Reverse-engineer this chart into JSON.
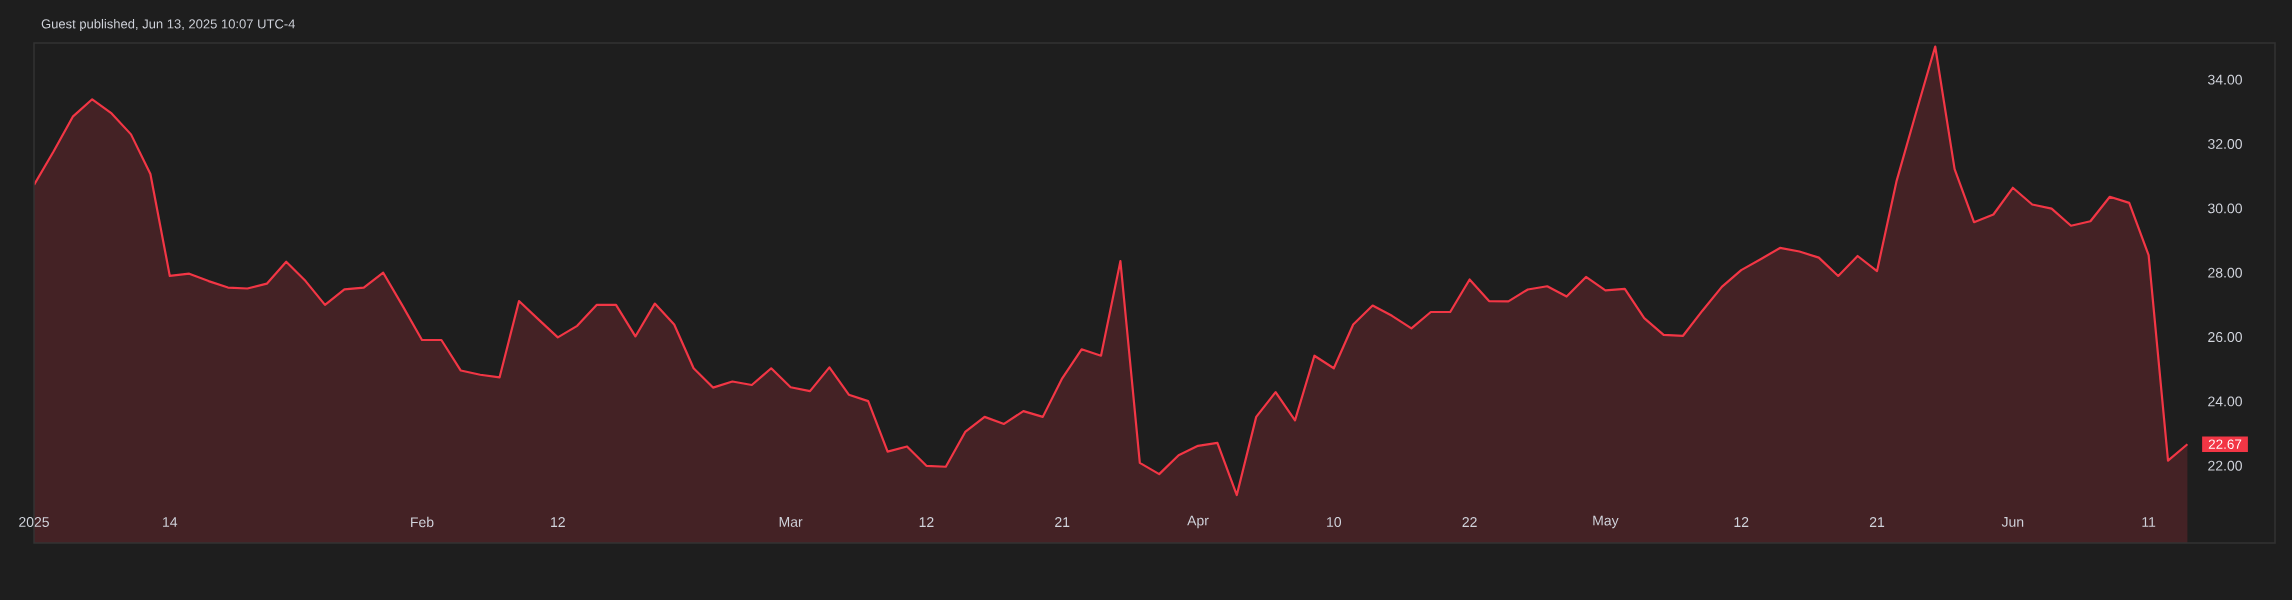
{
  "chart_data": {
    "type": "area",
    "title": "Guest published, Jun 13, 2025 10:07 UTC-4",
    "categories": [
      "2025",
      null,
      null,
      null,
      null,
      null,
      null,
      "14",
      null,
      null,
      null,
      null,
      null,
      null,
      null,
      null,
      null,
      null,
      null,
      null,
      "Feb",
      null,
      null,
      null,
      null,
      null,
      null,
      "12",
      null,
      null,
      null,
      null,
      null,
      null,
      null,
      null,
      null,
      null,
      null,
      "Mar",
      null,
      null,
      null,
      null,
      null,
      null,
      "12",
      null,
      null,
      null,
      null,
      null,
      null,
      "21",
      null,
      null,
      null,
      null,
      null,
      null,
      "Apr",
      null,
      null,
      null,
      null,
      null,
      null,
      "10",
      null,
      null,
      null,
      null,
      null,
      null,
      "22",
      null,
      null,
      null,
      null,
      null,
      null,
      "May",
      null,
      null,
      null,
      null,
      null,
      null,
      "12",
      null,
      null,
      null,
      null,
      null,
      null,
      "21",
      null,
      null,
      null,
      null,
      null,
      null,
      "Jun",
      null,
      null,
      null,
      null,
      null,
      null,
      "11",
      null,
      null
    ],
    "values": [
      30.73,
      31.76,
      32.85,
      33.39,
      32.95,
      32.3,
      31.07,
      27.9,
      27.97,
      27.74,
      27.54,
      27.51,
      27.66,
      28.34,
      27.74,
      27.0,
      27.48,
      27.54,
      28.0,
      26.97,
      25.91,
      25.91,
      24.96,
      24.83,
      24.75,
      27.12,
      26.55,
      25.99,
      26.35,
      27.0,
      27.0,
      26.02,
      27.04,
      26.39,
      25.03,
      24.43,
      24.62,
      24.51,
      25.03,
      24.44,
      24.32,
      25.06,
      24.21,
      24.01,
      22.44,
      22.6,
      22.0,
      21.97,
      23.05,
      23.52,
      23.3,
      23.7,
      23.52,
      24.72,
      25.62,
      25.42,
      28.36,
      22.09,
      21.74,
      22.33,
      22.62,
      22.71,
      21.09,
      23.52,
      24.29,
      23.41,
      25.42,
      25.03,
      26.39,
      26.98,
      26.66,
      26.27,
      26.78,
      26.78,
      27.79,
      27.12,
      27.11,
      27.48,
      27.58,
      27.26,
      27.87,
      27.45,
      27.5,
      26.59,
      26.07,
      26.04,
      26.82,
      27.56,
      28.08,
      28.42,
      28.77,
      28.66,
      28.47,
      27.9,
      28.52,
      28.05,
      30.83,
      32.95,
      35.03,
      31.22,
      29.57,
      29.81,
      30.64,
      30.12,
      29.99,
      29.46,
      29.6,
      30.36,
      30.17,
      28.55,
      22.16,
      22.67
    ],
    "value_labels": [
      null,
      null,
      null,
      null,
      null,
      null,
      null,
      null,
      null,
      null,
      null,
      null,
      null,
      null,
      null,
      null,
      null,
      null,
      null,
      null,
      null,
      null,
      null,
      null,
      null,
      null,
      null,
      null,
      null,
      null,
      null,
      null,
      null,
      null,
      null,
      null,
      null,
      null,
      null,
      null,
      null,
      null,
      null,
      null,
      null,
      null,
      null,
      null,
      null,
      null,
      null,
      null,
      null,
      null,
      null,
      null,
      null,
      null,
      null,
      null,
      null,
      null,
      null,
      null,
      null,
      null,
      null,
      null,
      null,
      null,
      null,
      null,
      null,
      null,
      null,
      null,
      null,
      null,
      null,
      null,
      null,
      null,
      null,
      null,
      null,
      null,
      null,
      null,
      null,
      null,
      null,
      null,
      null,
      null,
      null,
      null,
      null,
      null,
      null,
      null,
      null,
      null,
      null,
      null,
      null,
      null,
      null,
      null,
      null,
      null,
      null,
      "22.67"
    ],
    "color": "#f23645",
    "ylim": [
      19.6,
      35.14
    ],
    "yticks": [
      {
        "value": 22,
        "label": "22.00"
      },
      {
        "value": 24,
        "label": "24.00"
      },
      {
        "value": 26,
        "label": "26.00"
      },
      {
        "value": 28,
        "label": "28.00"
      },
      {
        "value": 30,
        "label": "30.00"
      },
      {
        "value": 32,
        "label": "32.00"
      },
      {
        "value": 34,
        "label": "34.00"
      }
    ]
  }
}
